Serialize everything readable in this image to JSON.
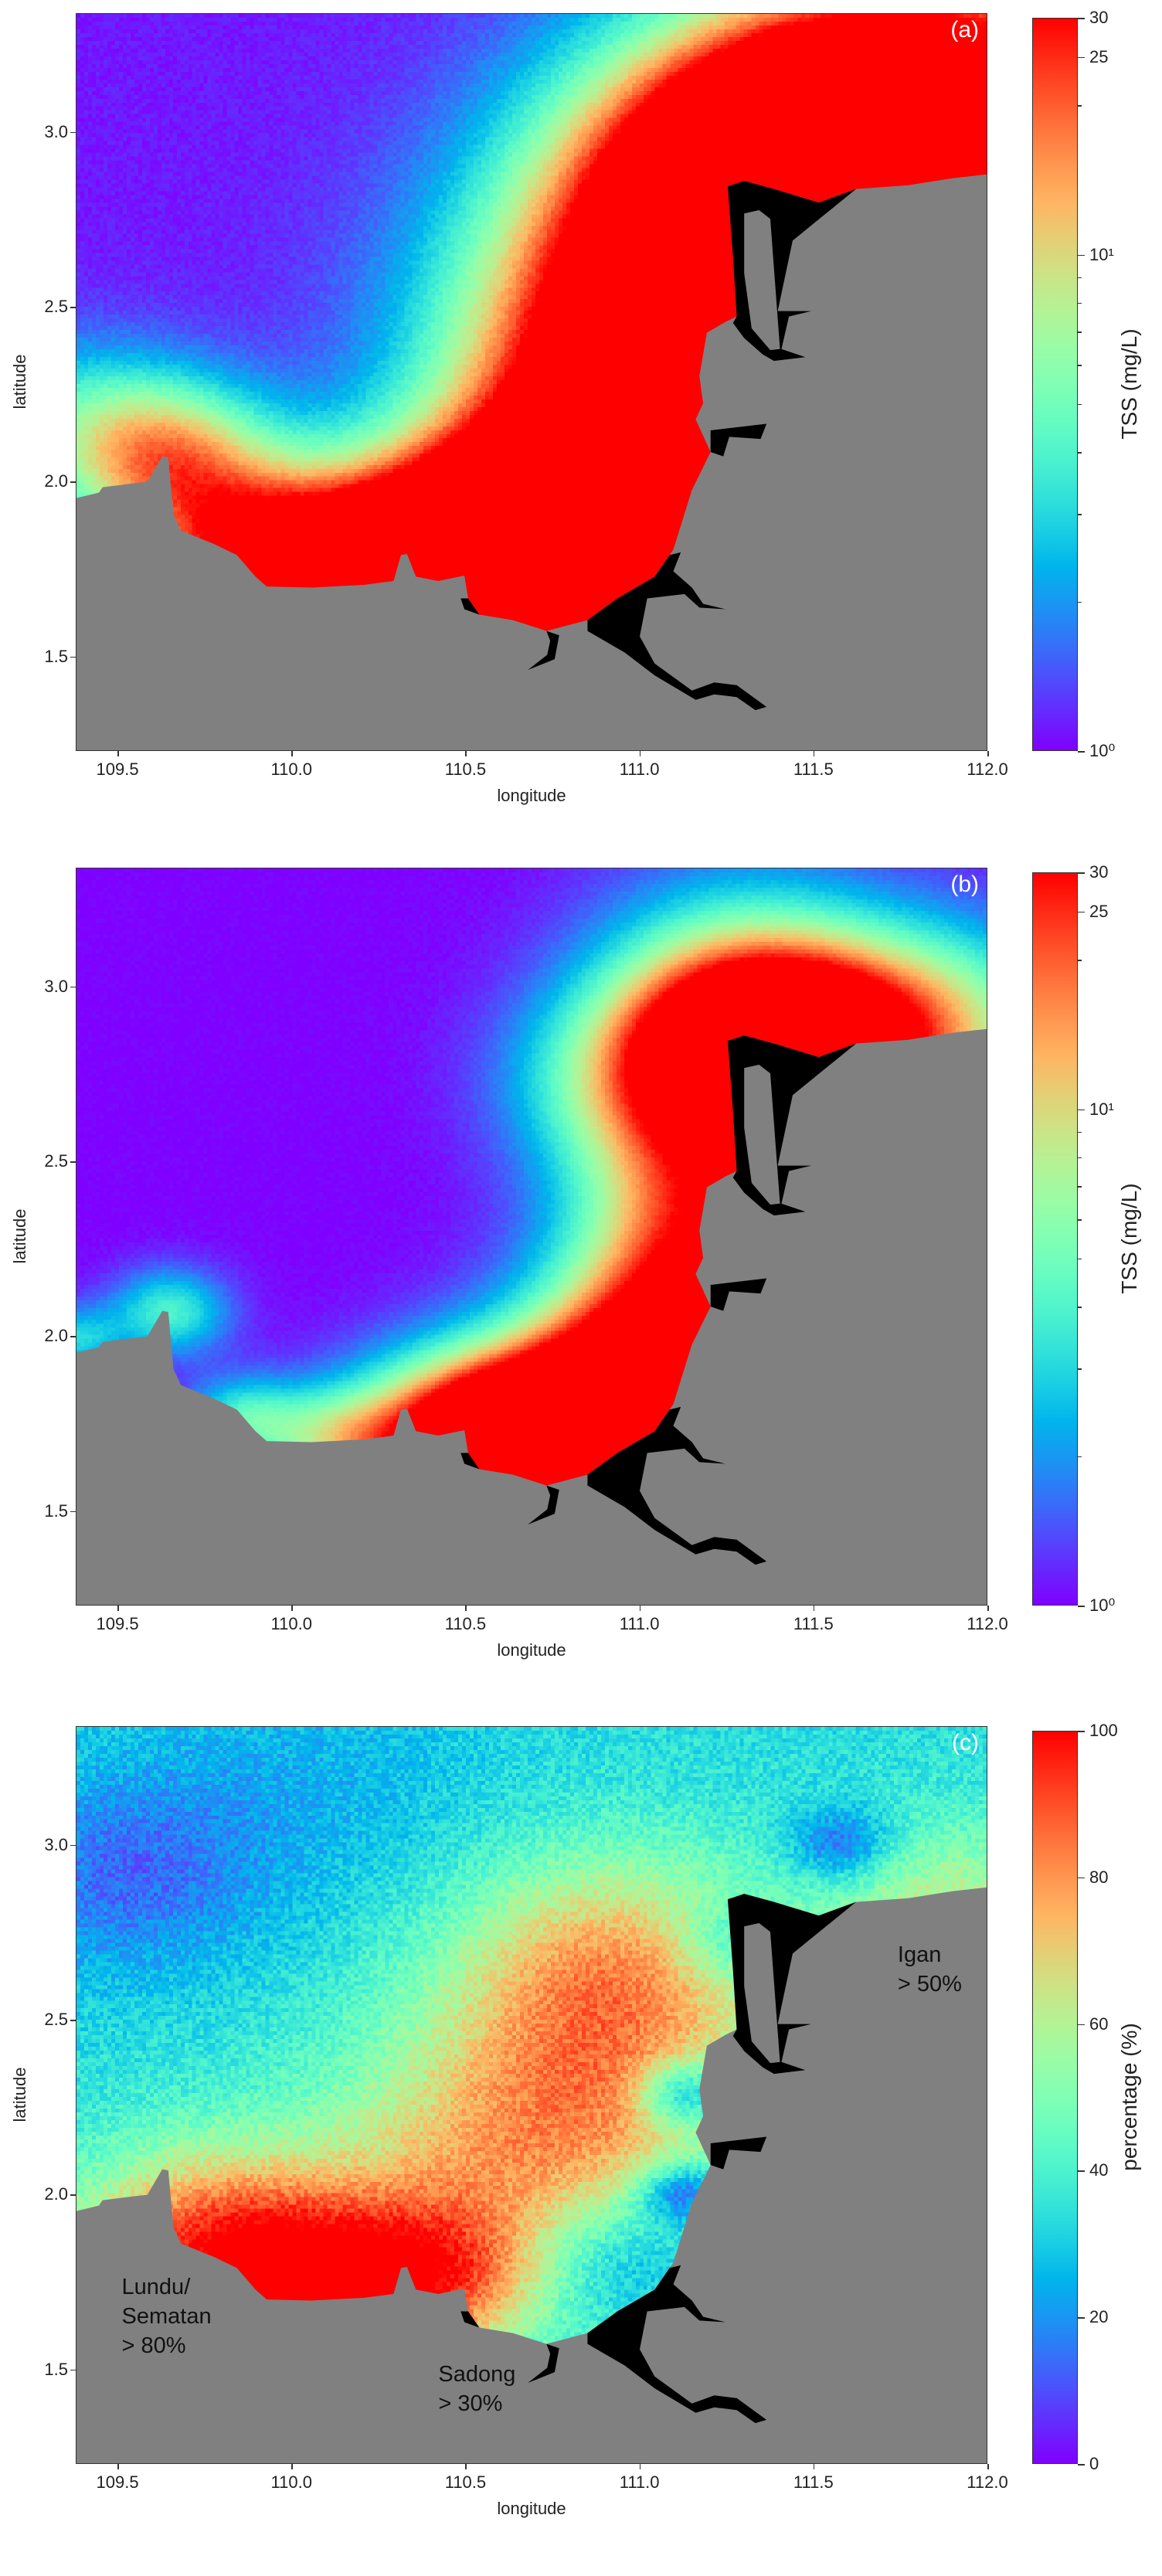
{
  "chart_data": [
    {
      "type": "heatmap",
      "panel_label": "(a)",
      "xlabel": "longitude",
      "ylabel": "latitude",
      "xlim": [
        109.38,
        112.0
      ],
      "ylim": [
        1.23,
        3.34
      ],
      "xticks": [
        "109.5",
        "110.0",
        "110.5",
        "111.0",
        "111.5",
        "112.0"
      ],
      "yticks": [
        "1.5",
        "2.0",
        "2.5",
        "3.0"
      ],
      "colormap": "rainbow",
      "colorbar": {
        "label": "TSS (mg/L)",
        "scale": "log",
        "range": [
          1,
          30
        ],
        "ticks": [
          {
            "value": 1,
            "label": "10⁰"
          },
          {
            "value": 10,
            "label": "10¹"
          },
          {
            "value": 25,
            "label": "25"
          },
          {
            "value": 30,
            "label": "30"
          }
        ]
      },
      "annotations": []
    },
    {
      "type": "heatmap",
      "panel_label": "(b)",
      "xlabel": "longitude",
      "ylabel": "latitude",
      "xlim": [
        109.38,
        112.0
      ],
      "ylim": [
        1.23,
        3.34
      ],
      "xticks": [
        "109.5",
        "110.0",
        "110.5",
        "111.0",
        "111.5",
        "112.0"
      ],
      "yticks": [
        "1.5",
        "2.0",
        "2.5",
        "3.0"
      ],
      "colormap": "rainbow",
      "colorbar": {
        "label": "TSS (mg/L)",
        "scale": "log",
        "range": [
          1,
          30
        ],
        "ticks": [
          {
            "value": 1,
            "label": "10⁰"
          },
          {
            "value": 10,
            "label": "10¹"
          },
          {
            "value": 25,
            "label": "25"
          },
          {
            "value": 30,
            "label": "30"
          }
        ]
      },
      "annotations": []
    },
    {
      "type": "heatmap",
      "panel_label": "(c)",
      "xlabel": "longitude",
      "ylabel": "latitude",
      "xlim": [
        109.38,
        112.0
      ],
      "ylim": [
        1.23,
        3.34
      ],
      "xticks": [
        "109.5",
        "110.0",
        "110.5",
        "111.0",
        "111.5",
        "112.0"
      ],
      "yticks": [
        "1.5",
        "2.0",
        "2.5",
        "3.0"
      ],
      "colormap": "rainbow",
      "colorbar": {
        "label": "percentage (%)",
        "scale": "linear",
        "range": [
          0,
          100
        ],
        "ticks": [
          {
            "value": 0,
            "label": "0"
          },
          {
            "value": 20,
            "label": "20"
          },
          {
            "value": 40,
            "label": "40"
          },
          {
            "value": 60,
            "label": "60"
          },
          {
            "value": 80,
            "label": "80"
          },
          {
            "value": 100,
            "label": "100"
          }
        ]
      },
      "annotations": [
        {
          "text": "Igan\n> 50%",
          "lon": 111.74,
          "lat": 2.73
        },
        {
          "text": "Lundu/\nSematan\n> 80%",
          "lon": 109.51,
          "lat": 1.78
        },
        {
          "text": "Sadong\n> 30%",
          "lon": 110.42,
          "lat": 1.53
        }
      ]
    }
  ],
  "colors": {
    "land": "#808080",
    "estuary": "#000000"
  }
}
